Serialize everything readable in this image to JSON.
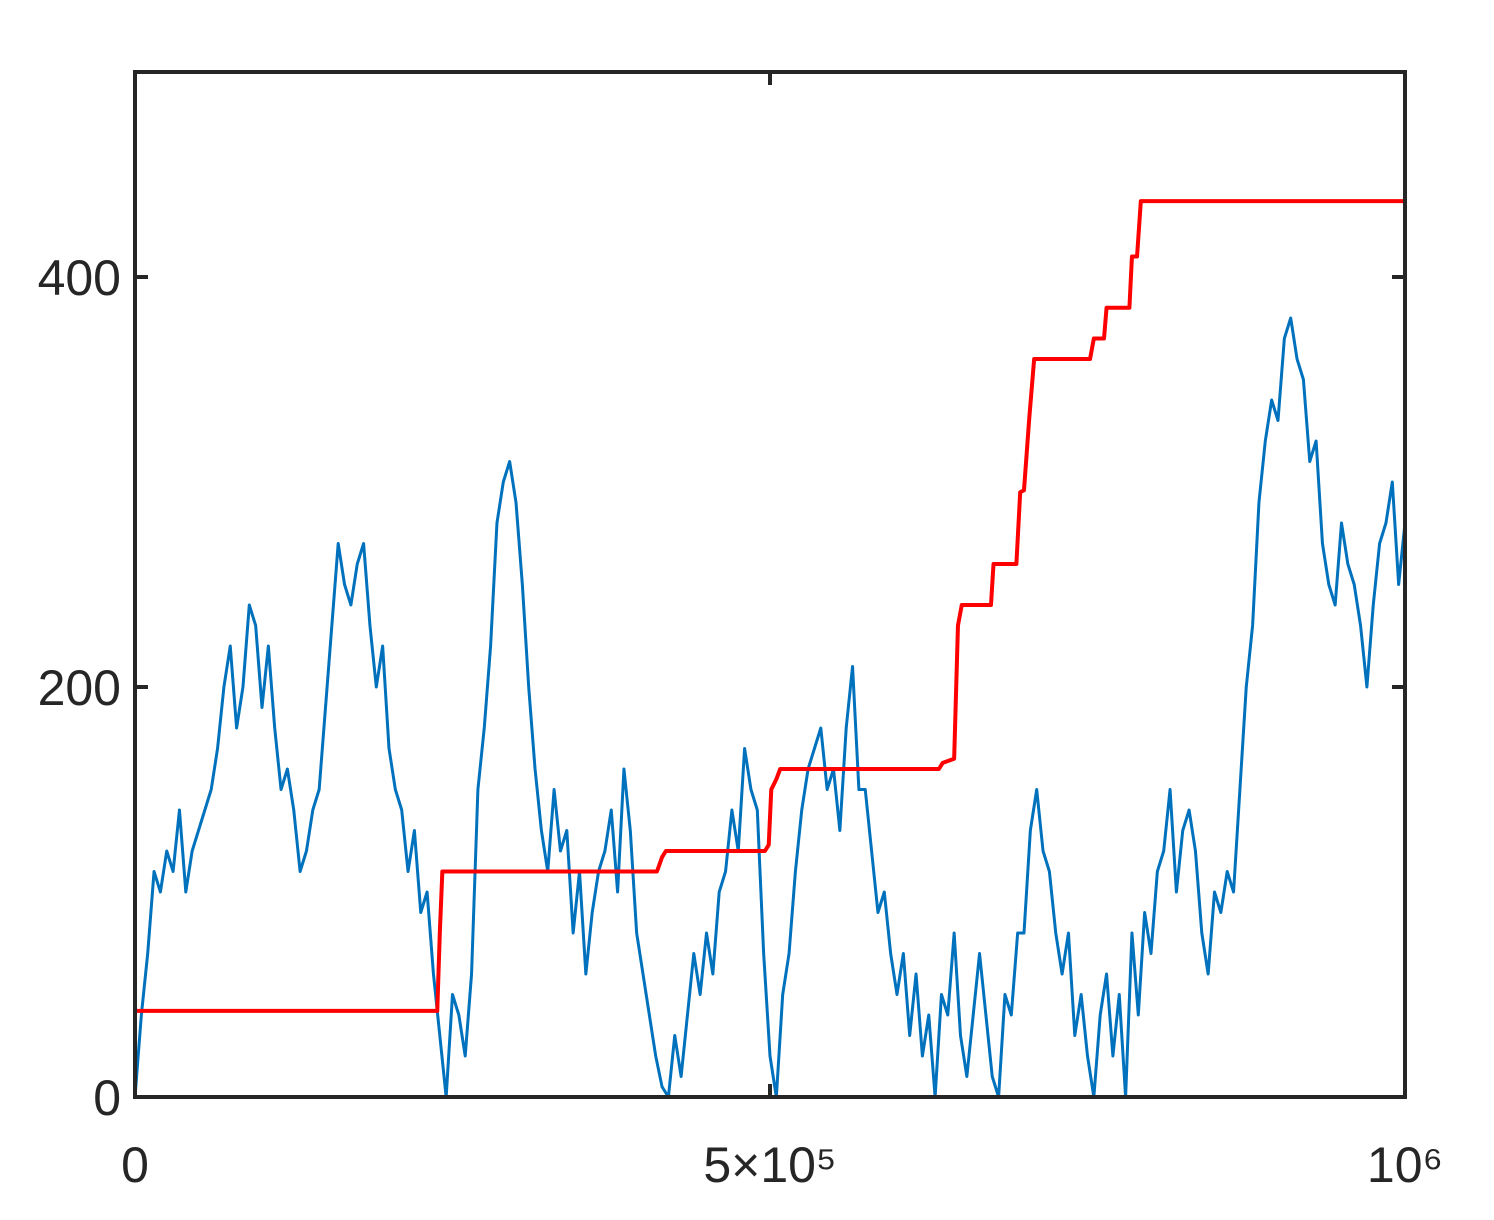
{
  "chart_data": {
    "type": "line",
    "xlim": [
      0,
      1000000
    ],
    "ylim": [
      0,
      500
    ],
    "xticks": [
      0,
      {
        "value": 500000,
        "label": "5×10⁵"
      },
      {
        "value": 1000000,
        "label": "10⁶"
      }
    ],
    "yticks": [
      0,
      200,
      400
    ],
    "series": [
      {
        "color": "#0072BD",
        "x": [
          0,
          5000,
          10000,
          15000,
          20000,
          25000,
          30000,
          35000,
          40000,
          45000,
          50000,
          55000,
          60000,
          65000,
          70000,
          75000,
          80000,
          85000,
          90000,
          95000,
          100000,
          105000,
          110000,
          115000,
          120000,
          125000,
          130000,
          135000,
          140000,
          145000,
          150000,
          155000,
          160000,
          165000,
          170000,
          175000,
          180000,
          185000,
          190000,
          195000,
          200000,
          205000,
          210000,
          215000,
          220000,
          225000,
          230000,
          235000,
          240000,
          245000,
          250000,
          255000,
          260000,
          265000,
          270000,
          275000,
          280000,
          285000,
          290000,
          295000,
          300000,
          305000,
          310000,
          315000,
          320000,
          325000,
          330000,
          335000,
          340000,
          345000,
          350000,
          355000,
          360000,
          365000,
          370000,
          375000,
          380000,
          385000,
          390000,
          395000,
          400000,
          405000,
          410000,
          415000,
          420000,
          425000,
          430000,
          435000,
          440000,
          445000,
          450000,
          455000,
          460000,
          465000,
          470000,
          475000,
          480000,
          485000,
          490000,
          495000,
          500000,
          505000,
          510000,
          515000,
          520000,
          525000,
          530000,
          535000,
          540000,
          545000,
          550000,
          555000,
          560000,
          565000,
          570000,
          575000,
          580000,
          585000,
          590000,
          595000,
          600000,
          605000,
          610000,
          615000,
          620000,
          625000,
          630000,
          635000,
          640000,
          645000,
          650000,
          655000,
          660000,
          665000,
          670000,
          675000,
          680000,
          685000,
          690000,
          695000,
          700000,
          705000,
          710000,
          715000,
          720000,
          725000,
          730000,
          735000,
          740000,
          745000,
          750000,
          755000,
          760000,
          765000,
          770000,
          775000,
          780000,
          785000,
          790000,
          795000,
          800000,
          805000,
          810000,
          815000,
          820000,
          825000,
          830000,
          835000,
          840000,
          845000,
          850000,
          855000,
          860000,
          865000,
          870000,
          875000,
          880000,
          885000,
          890000,
          895000,
          900000,
          905000,
          910000,
          915000,
          920000,
          925000,
          930000,
          935000,
          940000,
          945000,
          950000,
          955000,
          960000,
          965000,
          970000,
          975000,
          980000,
          985000,
          990000,
          995000,
          1000000
        ],
        "values": [
          0,
          40,
          70,
          110,
          100,
          120,
          110,
          140,
          100,
          120,
          130,
          140,
          150,
          170,
          200,
          220,
          180,
          200,
          240,
          230,
          190,
          220,
          180,
          150,
          160,
          140,
          110,
          120,
          140,
          150,
          190,
          230,
          270,
          250,
          240,
          260,
          270,
          230,
          200,
          220,
          170,
          150,
          140,
          110,
          130,
          90,
          100,
          60,
          30,
          0,
          50,
          40,
          20,
          60,
          150,
          180,
          220,
          280,
          300,
          310,
          290,
          250,
          200,
          160,
          130,
          110,
          150,
          120,
          130,
          80,
          110,
          60,
          90,
          110,
          120,
          140,
          100,
          160,
          130,
          80,
          60,
          40,
          20,
          5,
          0,
          30,
          10,
          40,
          70,
          50,
          80,
          60,
          100,
          110,
          140,
          120,
          170,
          150,
          140,
          70,
          20,
          0,
          50,
          70,
          110,
          140,
          160,
          170,
          180,
          150,
          160,
          130,
          180,
          210,
          150,
          150,
          120,
          90,
          100,
          70,
          50,
          70,
          30,
          60,
          20,
          40,
          0,
          50,
          40,
          80,
          30,
          10,
          40,
          70,
          40,
          10,
          0,
          50,
          40,
          80,
          80,
          130,
          150,
          120,
          110,
          80,
          60,
          80,
          30,
          50,
          20,
          0,
          40,
          60,
          20,
          50,
          0,
          80,
          40,
          90,
          70,
          110,
          120,
          150,
          100,
          130,
          140,
          120,
          80,
          60,
          100,
          90,
          110,
          100,
          150,
          200,
          230,
          290,
          320,
          340,
          330,
          370,
          380,
          360,
          350,
          310,
          320,
          270,
          250,
          240,
          280,
          260,
          250,
          230,
          200,
          240,
          270,
          280,
          300,
          250,
          280
        ]
      },
      {
        "color": "#FF0000",
        "x": [
          0,
          0,
          238000,
          240000,
          242000,
          411000,
          415000,
          418000,
          496000,
          499000,
          501000,
          505000,
          508000,
          633000,
          636000,
          645000,
          648000,
          651000,
          674000,
          676000,
          694000,
          697000,
          700000,
          704000,
          706000,
          708000,
          752000,
          755000,
          763000,
          765000,
          783000,
          785000,
          789000,
          792000,
          1000000
        ],
        "values": [
          0,
          42,
          42,
          80,
          110,
          110,
          117,
          120,
          120,
          123,
          150,
          155,
          160,
          160,
          163,
          165,
          230,
          240,
          240,
          260,
          260,
          295,
          296,
          330,
          345,
          360,
          360,
          370,
          370,
          385,
          385,
          410,
          410,
          437,
          437
        ]
      }
    ]
  }
}
